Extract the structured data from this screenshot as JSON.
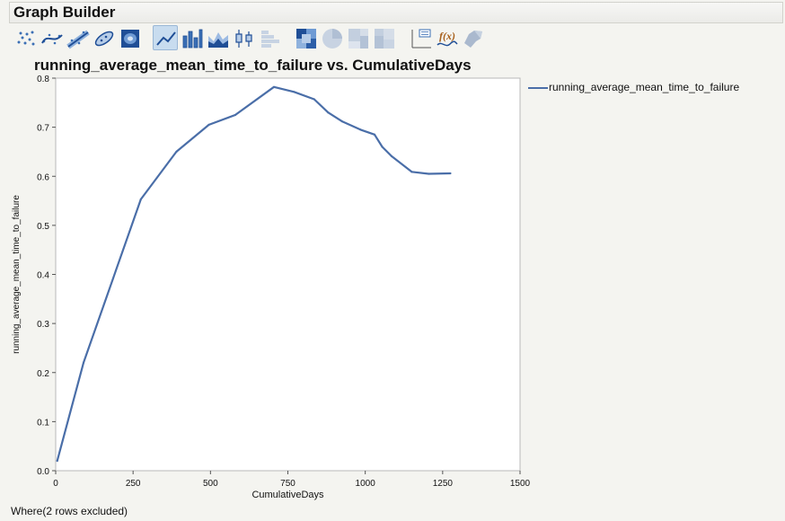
{
  "window": {
    "title": "Graph Builder"
  },
  "toolbar": {
    "buttons": [
      {
        "name": "points",
        "icon": "scatter-points-icon",
        "active": false
      },
      {
        "name": "smoother",
        "icon": "smoother-icon",
        "active": false
      },
      {
        "name": "line-of-fit",
        "icon": "line-of-fit-icon",
        "active": false
      },
      {
        "name": "ellipse",
        "icon": "ellipse-icon",
        "active": false
      },
      {
        "name": "contour",
        "icon": "contour-icon",
        "active": false
      },
      {
        "name": "line",
        "icon": "line-chart-icon",
        "active": true
      },
      {
        "name": "bar",
        "icon": "bar-chart-icon",
        "active": false
      },
      {
        "name": "area",
        "icon": "area-chart-icon",
        "active": false
      },
      {
        "name": "box-plot",
        "icon": "box-plot-icon",
        "active": false
      },
      {
        "name": "histogram",
        "icon": "histogram-icon",
        "active": false
      },
      {
        "name": "heatmap",
        "icon": "heatmap-icon",
        "active": false
      },
      {
        "name": "pie",
        "icon": "pie-chart-icon",
        "active": false
      },
      {
        "name": "treemap",
        "icon": "treemap-icon",
        "active": false
      },
      {
        "name": "mosaic",
        "icon": "mosaic-icon",
        "active": false
      },
      {
        "name": "caption-box",
        "icon": "caption-box-icon",
        "active": false
      },
      {
        "name": "formula",
        "icon": "formula-icon",
        "active": false
      },
      {
        "name": "map-shapes",
        "icon": "map-shapes-icon",
        "active": false
      }
    ]
  },
  "colors": {
    "series": "#4a6ea8",
    "active_button": "#c8dcef"
  },
  "status": {
    "text": "Where(2 rows excluded)"
  },
  "chart_data": {
    "type": "line",
    "title": "running_average_mean_time_to_failure vs. CumulativeDays",
    "xlabel": "CumulativeDays",
    "ylabel": "running_average_mean_time_to_failure",
    "xlim": [
      0,
      1500
    ],
    "ylim": [
      0,
      0.8
    ],
    "xticks": [
      "0",
      "250",
      "500",
      "750",
      "1000",
      "1250",
      "1500"
    ],
    "yticks": [
      "0.0",
      "0.1",
      "0.2",
      "0.3",
      "0.4",
      "0.5",
      "0.6",
      "0.7",
      "0.8"
    ],
    "grid": false,
    "legend_position": "right",
    "series": [
      {
        "name": "running_average_mean_time_to_failure",
        "x": [
          5,
          90,
          275,
          390,
          495,
          580,
          705,
          770,
          835,
          880,
          925,
          985,
          1030,
          1055,
          1085,
          1150,
          1205,
          1275
        ],
        "y": [
          0.02,
          0.22,
          0.553,
          0.65,
          0.705,
          0.725,
          0.782,
          0.772,
          0.757,
          0.73,
          0.712,
          0.695,
          0.685,
          0.66,
          0.641,
          0.609,
          0.605,
          0.606
        ]
      }
    ]
  }
}
